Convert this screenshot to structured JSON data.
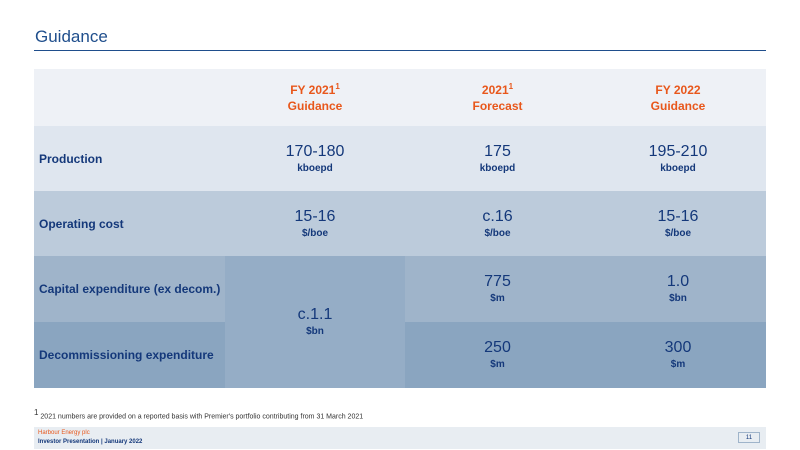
{
  "title": "Guidance",
  "columns": [
    {
      "line1": "FY 2021",
      "sup": "1",
      "line2": "Guidance"
    },
    {
      "line1": "2021",
      "sup": "1",
      "line2": "Forecast"
    },
    {
      "line1": "FY 2022",
      "sup": "",
      "line2": "Guidance"
    }
  ],
  "rows": [
    {
      "label": "Production",
      "fy2021": {
        "value": "170-180",
        "unit": "kboepd"
      },
      "forecast": {
        "value": "175",
        "unit": "kboepd"
      },
      "fy2022": {
        "value": "195-210",
        "unit": "kboepd"
      }
    },
    {
      "label": "Operating cost",
      "fy2021": {
        "value": "15-16",
        "unit": "$/boe"
      },
      "forecast": {
        "value": "c.16",
        "unit": "$/boe"
      },
      "fy2022": {
        "value": "15-16",
        "unit": "$/boe"
      }
    },
    {
      "label": "Capital expenditure (ex decom.)",
      "forecast": {
        "value": "775",
        "unit": "$m"
      },
      "fy2022": {
        "value": "1.0",
        "unit": "$bn"
      }
    },
    {
      "label": "Decommissioning expenditure",
      "forecast": {
        "value": "250",
        "unit": "$m"
      },
      "fy2022": {
        "value": "300",
        "unit": "$m"
      }
    }
  ],
  "merged": {
    "value": "c.1.1",
    "unit": "$bn"
  },
  "footnote": "2021 numbers are provided on a reported basis with Premier's portfolio contributing from 31 March 2021",
  "footnote_marker": "1",
  "footer": {
    "company": "Harbour Energy plc",
    "presentation": "Investor Presentation | January 2022",
    "page": "11"
  }
}
